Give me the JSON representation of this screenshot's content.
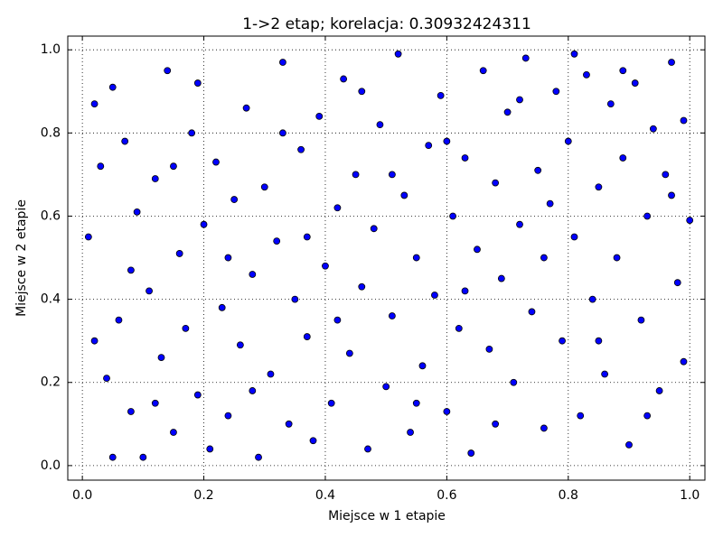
{
  "chart_data": {
    "type": "scatter",
    "title": "1->2 etap; korelacja: 0.30932424311",
    "xlabel": "Miejsce w 1 etapie",
    "ylabel": "Miejsce w 2 etapie",
    "color": "#0000ff",
    "grid": true,
    "xlim": [
      -0.024,
      1.025
    ],
    "ylim": [
      -0.035,
      1.033
    ],
    "xticks": [
      {
        "value": 0,
        "label": "0.0"
      },
      0.2,
      0.4,
      0.6,
      0.8,
      {
        "value": 1,
        "label": "1.0"
      }
    ],
    "yticks": [
      {
        "value": 0,
        "label": "0.0"
      },
      0.2,
      0.4,
      0.6,
      0.8,
      {
        "value": 1,
        "label": "1.0"
      }
    ],
    "x": [
      0.01,
      0.02,
      0.03,
      0.04,
      0.05,
      0.06,
      0.07,
      0.08,
      0.09,
      0.1,
      0.11,
      0.12,
      0.13,
      0.14,
      0.15,
      0.16,
      0.17,
      0.18,
      0.19,
      0.2,
      0.21,
      0.22,
      0.23,
      0.24,
      0.25,
      0.26,
      0.27,
      0.28,
      0.29,
      0.3,
      0.31,
      0.32,
      0.33,
      0.34,
      0.35,
      0.36,
      0.37,
      0.38,
      0.39,
      0.4,
      0.41,
      0.42,
      0.43,
      0.44,
      0.45,
      0.46,
      0.47,
      0.48,
      0.49,
      0.5,
      0.51,
      0.52,
      0.53,
      0.54,
      0.55,
      0.56,
      0.57,
      0.58,
      0.59,
      0.6,
      0.61,
      0.62,
      0.63,
      0.64,
      0.65,
      0.66,
      0.67,
      0.68,
      0.69,
      0.7,
      0.71,
      0.72,
      0.73,
      0.74,
      0.75,
      0.76,
      0.77,
      0.78,
      0.79,
      0.8,
      0.81,
      0.82,
      0.83,
      0.84,
      0.85,
      0.86,
      0.87,
      0.88,
      0.89,
      0.9,
      0.91,
      0.92,
      0.93,
      0.94,
      0.95,
      0.96,
      0.97,
      0.98,
      0.99,
      1.0,
      0.02,
      0.05,
      0.08,
      0.12,
      0.15,
      0.19,
      0.24,
      0.28,
      0.33,
      0.37,
      0.42,
      0.46,
      0.51,
      0.55,
      0.6,
      0.63,
      0.68,
      0.72,
      0.76,
      0.81,
      0.85,
      0.89,
      0.93,
      0.97,
      0.99
    ],
    "values": [
      0.55,
      0.87,
      0.72,
      0.21,
      0.91,
      0.35,
      0.78,
      0.13,
      0.61,
      0.02,
      0.42,
      0.69,
      0.26,
      0.95,
      0.08,
      0.51,
      0.33,
      0.8,
      0.17,
      0.58,
      0.04,
      0.73,
      0.38,
      0.12,
      0.64,
      0.29,
      0.86,
      0.46,
      0.02,
      0.67,
      0.22,
      0.54,
      0.97,
      0.1,
      0.4,
      0.76,
      0.31,
      0.06,
      0.84,
      0.48,
      0.15,
      0.62,
      0.93,
      0.27,
      0.7,
      0.43,
      0.04,
      0.57,
      0.82,
      0.19,
      0.36,
      0.99,
      0.65,
      0.08,
      0.5,
      0.24,
      0.77,
      0.41,
      0.89,
      0.13,
      0.6,
      0.33,
      0.74,
      0.03,
      0.52,
      0.95,
      0.28,
      0.68,
      0.45,
      0.85,
      0.2,
      0.58,
      0.98,
      0.37,
      0.71,
      0.09,
      0.63,
      0.9,
      0.3,
      0.78,
      0.55,
      0.12,
      0.94,
      0.4,
      0.67,
      0.22,
      0.87,
      0.5,
      0.74,
      0.05,
      0.92,
      0.35,
      0.6,
      0.81,
      0.18,
      0.7,
      0.97,
      0.44,
      0.83,
      0.59,
      0.3,
      0.02,
      0.47,
      0.15,
      0.72,
      0.92,
      0.5,
      0.18,
      0.8,
      0.55,
      0.35,
      0.9,
      0.7,
      0.15,
      0.78,
      0.42,
      0.1,
      0.88,
      0.5,
      0.99,
      0.3,
      0.95,
      0.12,
      0.65,
      0.25
    ]
  }
}
